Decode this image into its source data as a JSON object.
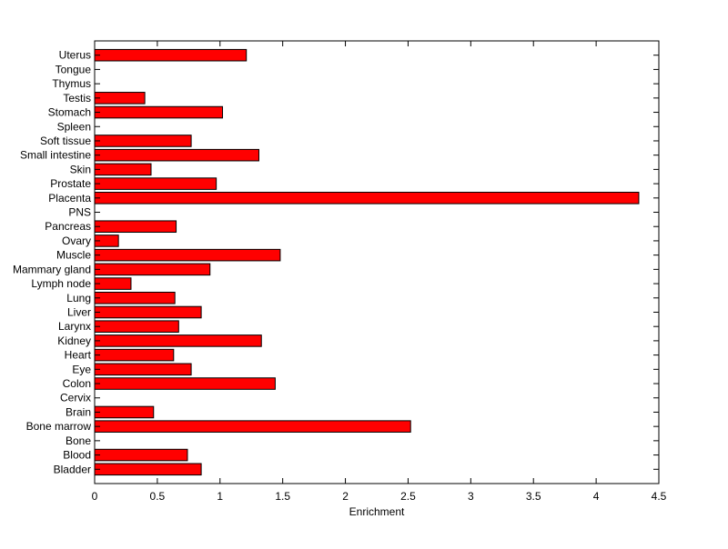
{
  "chart_data": {
    "type": "bar",
    "orientation": "horizontal",
    "title": "",
    "xlabel": "Enrichment",
    "ylabel": "",
    "xlim": [
      0,
      4.5
    ],
    "xticks": [
      "0",
      "0.5",
      "1",
      "1.5",
      "2",
      "2.5",
      "3",
      "3.5",
      "4",
      "4.5"
    ],
    "grid": false,
    "legend": "none",
    "bar_color": "#ff0000",
    "bar_edge_color": "#000000",
    "categories": [
      "Bladder",
      "Blood",
      "Bone",
      "Bone marrow",
      "Brain",
      "Cervix",
      "Colon",
      "Eye",
      "Heart",
      "Kidney",
      "Larynx",
      "Liver",
      "Lung",
      "Lymph node",
      "Mammary gland",
      "Muscle",
      "Ovary",
      "Pancreas",
      "PNS",
      "Placenta",
      "Prostate",
      "Skin",
      "Small intestine",
      "Soft tissue",
      "Spleen",
      "Stomach",
      "Testis",
      "Thymus",
      "Tongue",
      "Uterus"
    ],
    "values": [
      0.85,
      0.74,
      0,
      2.52,
      0.47,
      0,
      1.44,
      0.77,
      0.63,
      1.33,
      0.67,
      0.85,
      0.64,
      0.29,
      0.92,
      1.48,
      0.19,
      0.65,
      0,
      4.34,
      0.97,
      0.45,
      1.31,
      0.77,
      0,
      1.02,
      0.4,
      0,
      0,
      1.21
    ]
  }
}
